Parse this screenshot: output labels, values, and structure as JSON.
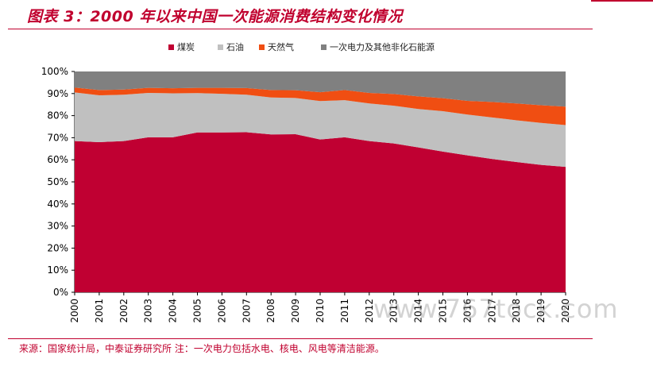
{
  "title": "图表 3：2000 年以来中国一次能源消费结构变化情况",
  "source": "来源：国家统计局，中泰证券研究所 注：一次电力包括水电、核电、风电等清洁能源。",
  "watermark": "www.767tock.com",
  "colors": {
    "accent": "#c0002e",
    "coal": "#c00032",
    "oil": "#c0c0c0",
    "gas": "#f04e12",
    "other": "#808080"
  },
  "chart_data": {
    "type": "area",
    "stacked": true,
    "categories": [
      "2000",
      "2001",
      "2002",
      "2003",
      "2004",
      "2005",
      "2006",
      "2007",
      "2008",
      "2009",
      "2010",
      "2011",
      "2012",
      "2013",
      "2014",
      "2015",
      "2016",
      "2017",
      "2018",
      "2019",
      "2020"
    ],
    "ylim": [
      0,
      100
    ],
    "yticks": [
      "0%",
      "10%",
      "20%",
      "30%",
      "40%",
      "50%",
      "60%",
      "70%",
      "80%",
      "90%",
      "100%"
    ],
    "legend_position": "top",
    "series": [
      {
        "name": "煤炭",
        "color": "#c00032",
        "values": [
          68.5,
          68.0,
          68.5,
          70.2,
          70.2,
          72.4,
          72.4,
          72.5,
          71.5,
          71.6,
          69.2,
          70.2,
          68.5,
          67.4,
          65.6,
          63.7,
          62.0,
          60.4,
          59.0,
          57.7,
          56.8
        ]
      },
      {
        "name": "石油",
        "color": "#c0c0c0",
        "values": [
          22.0,
          21.2,
          21.0,
          20.1,
          19.9,
          17.8,
          17.5,
          17.0,
          16.7,
          16.4,
          17.4,
          16.8,
          17.0,
          17.1,
          17.4,
          18.3,
          18.5,
          18.8,
          18.9,
          19.0,
          18.9
        ]
      },
      {
        "name": "天然气",
        "color": "#f04e12",
        "values": [
          2.2,
          2.4,
          2.3,
          2.3,
          2.3,
          2.4,
          2.7,
          3.0,
          3.4,
          3.5,
          4.0,
          4.6,
          4.8,
          5.3,
          5.7,
          5.9,
          6.2,
          7.0,
          7.6,
          8.0,
          8.4
        ]
      },
      {
        "name": "一次电力及其他非化石能源",
        "color": "#808080",
        "values": [
          7.3,
          8.4,
          8.2,
          7.4,
          7.6,
          7.4,
          7.4,
          7.5,
          8.4,
          8.5,
          9.4,
          8.4,
          9.7,
          10.2,
          11.3,
          12.1,
          13.3,
          13.8,
          14.5,
          15.3,
          15.9
        ]
      }
    ]
  }
}
